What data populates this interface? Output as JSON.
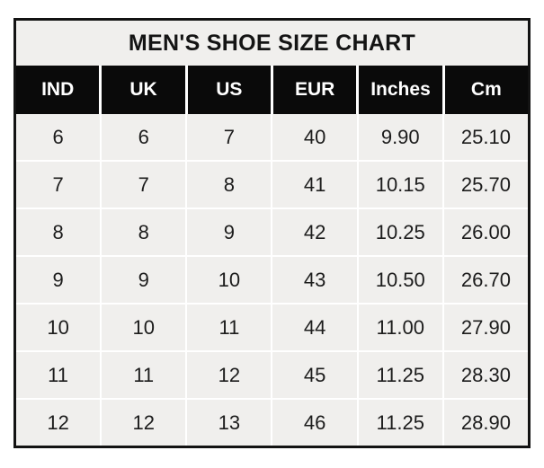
{
  "table": {
    "title": "MEN'S SHOE SIZE CHART",
    "headers": [
      "IND",
      "UK",
      "US",
      "EUR",
      "Inches",
      "Cm"
    ],
    "rows": [
      [
        "6",
        "6",
        "7",
        "40",
        "9.90",
        "25.10"
      ],
      [
        "7",
        "7",
        "8",
        "41",
        "10.15",
        "25.70"
      ],
      [
        "8",
        "8",
        "9",
        "42",
        "10.25",
        "26.00"
      ],
      [
        "9",
        "9",
        "10",
        "43",
        "10.50",
        "26.70"
      ],
      [
        "10",
        "10",
        "11",
        "44",
        "11.00",
        "27.90"
      ],
      [
        "11",
        "11",
        "12",
        "45",
        "11.25",
        "28.30"
      ],
      [
        "12",
        "12",
        "13",
        "46",
        "11.25",
        "28.90"
      ]
    ],
    "colors": {
      "header_bg": "#0a0a0a",
      "header_text": "#ffffff",
      "cell_bg": "#f0efed",
      "title_bg": "#f0efed",
      "border": "#131313",
      "gridline": "#ffffff",
      "text": "#1c1c1c"
    }
  },
  "chart_data": {
    "type": "table",
    "title": "MEN'S SHOE SIZE CHART",
    "columns": [
      "IND",
      "UK",
      "US",
      "EUR",
      "Inches",
      "Cm"
    ],
    "rows": [
      [
        6,
        6,
        7,
        40,
        9.9,
        25.1
      ],
      [
        7,
        7,
        8,
        41,
        10.15,
        25.7
      ],
      [
        8,
        8,
        9,
        42,
        10.25,
        26.0
      ],
      [
        9,
        9,
        10,
        43,
        10.5,
        26.7
      ],
      [
        10,
        10,
        11,
        44,
        11.0,
        27.9
      ],
      [
        11,
        11,
        12,
        45,
        11.25,
        28.3
      ],
      [
        12,
        12,
        13,
        46,
        11.25,
        28.9
      ]
    ],
    "layout": {
      "title_position": "top-center",
      "header_style": "black-bar",
      "grid": "on"
    }
  }
}
